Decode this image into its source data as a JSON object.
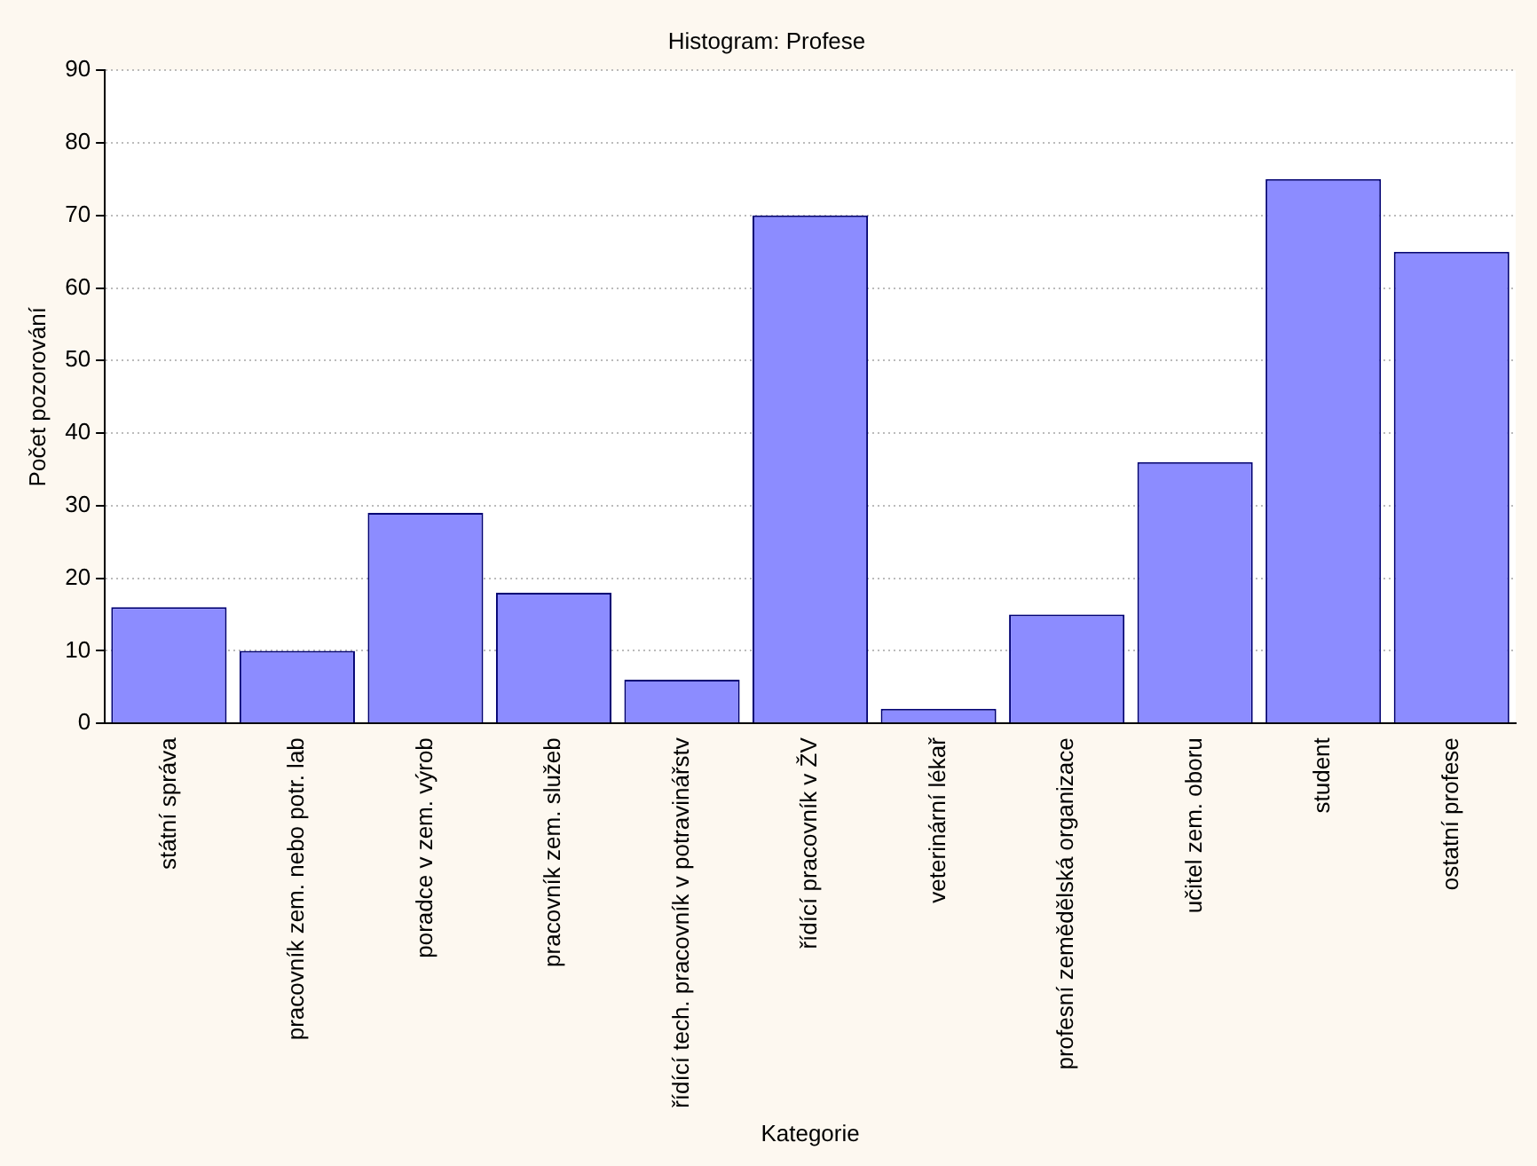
{
  "chart_data": {
    "type": "bar",
    "title": "Histogram: Profese",
    "xlabel": "Kategorie",
    "ylabel": "Počet pozorování",
    "categories": [
      "státní správa",
      "pracovník zem. nebo potr. lab",
      "poradce v zem. výrob",
      "pracovník zem. služeb",
      "řídící tech. pracovník v potravinářstv",
      "řídící pracovník v ŽV",
      "veterinární lékař",
      "profesní zemědělská organizace",
      "učitel zem. oboru",
      "student",
      "ostatní profese"
    ],
    "values": [
      16,
      10,
      29,
      18,
      6,
      70,
      2,
      15,
      36,
      75,
      65
    ],
    "color": "#8c8cff",
    "ylim": [
      0,
      90
    ],
    "yticks": [
      0,
      10,
      20,
      30,
      40,
      50,
      60,
      70,
      80,
      90
    ],
    "grid": "y",
    "legend": false
  }
}
